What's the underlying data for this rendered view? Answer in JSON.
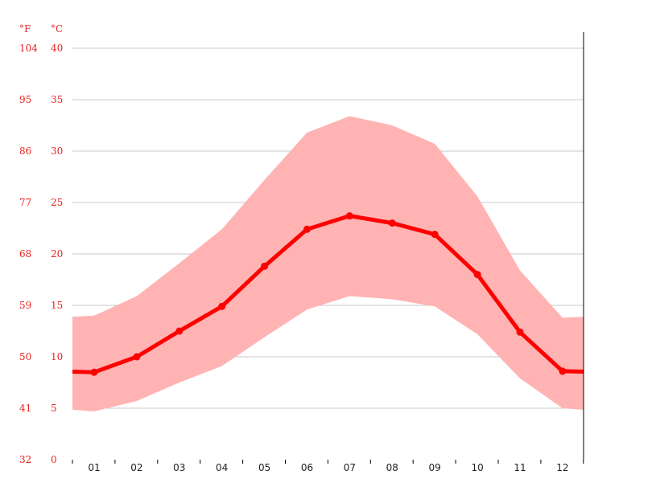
{
  "chart_data": {
    "type": "line",
    "title": "",
    "units": {
      "left": "°F",
      "right": "°C"
    },
    "celsius_ticks": [
      0,
      5,
      10,
      15,
      20,
      25,
      30,
      35,
      40
    ],
    "fahrenheit_ticks": [
      "32",
      "41",
      "50",
      "59",
      "68",
      "77",
      "86",
      "95",
      "104"
    ],
    "categories": [
      "01",
      "02",
      "03",
      "04",
      "05",
      "06",
      "07",
      "08",
      "09",
      "10",
      "11",
      "12"
    ],
    "ylim": [
      0,
      40
    ],
    "grid": true,
    "series": [
      {
        "role": "mean",
        "values": [
          8.5,
          10.0,
          12.5,
          14.9,
          18.8,
          22.4,
          23.7,
          23.0,
          21.9,
          18.0,
          12.4,
          8.6
        ]
      },
      {
        "role": "max",
        "values": [
          14.0,
          15.9,
          19.1,
          22.4,
          27.2,
          31.8,
          33.4,
          32.5,
          30.7,
          25.6,
          18.4,
          13.8
        ]
      },
      {
        "role": "min",
        "values": [
          4.7,
          5.7,
          7.5,
          9.1,
          11.9,
          14.6,
          15.9,
          15.6,
          14.9,
          12.2,
          7.9,
          5.0
        ]
      }
    ],
    "colors": {
      "mean_line": "#ff0000",
      "range_fill": "#ffb3b3",
      "labels": "#e8231f"
    }
  }
}
